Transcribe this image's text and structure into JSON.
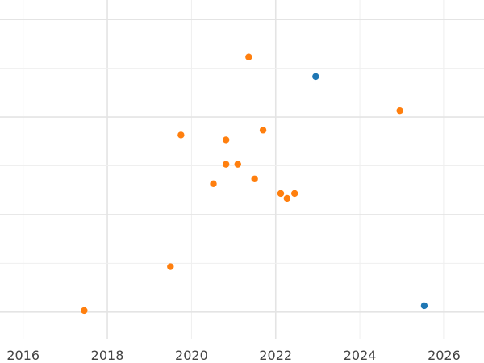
{
  "chart_data": {
    "type": "scatter",
    "title": "",
    "xlabel": "",
    "ylabel": "",
    "grid": true,
    "legend": "none",
    "xlim": [
      2015.45,
      2026.95
    ],
    "ylim": [
      -0.55,
      6.4
    ],
    "x_ticks": [
      2016,
      2018,
      2020,
      2022,
      2024,
      2026
    ],
    "x_tick_labels": [
      "2016",
      "2018",
      "2020",
      "2022",
      "2024",
      "2026"
    ],
    "y_gridlines": [
      0,
      1,
      2,
      3,
      4,
      5,
      6
    ],
    "series": [
      {
        "color": "#ff7f0e",
        "points": [
          {
            "x": 2017.45,
            "y": 0.03
          },
          {
            "x": 2019.5,
            "y": 0.93
          },
          {
            "x": 2019.75,
            "y": 3.63
          },
          {
            "x": 2020.52,
            "y": 2.63
          },
          {
            "x": 2020.82,
            "y": 3.53
          },
          {
            "x": 2020.82,
            "y": 3.03
          },
          {
            "x": 2021.1,
            "y": 3.03
          },
          {
            "x": 2021.36,
            "y": 5.23
          },
          {
            "x": 2021.5,
            "y": 2.73
          },
          {
            "x": 2021.7,
            "y": 3.73
          },
          {
            "x": 2022.12,
            "y": 2.43
          },
          {
            "x": 2022.27,
            "y": 2.33
          },
          {
            "x": 2022.45,
            "y": 2.43
          },
          {
            "x": 2024.95,
            "y": 4.13
          }
        ]
      },
      {
        "color": "#1f77b4",
        "points": [
          {
            "x": 2022.95,
            "y": 4.83
          },
          {
            "x": 2025.53,
            "y": 0.13
          }
        ]
      }
    ]
  }
}
